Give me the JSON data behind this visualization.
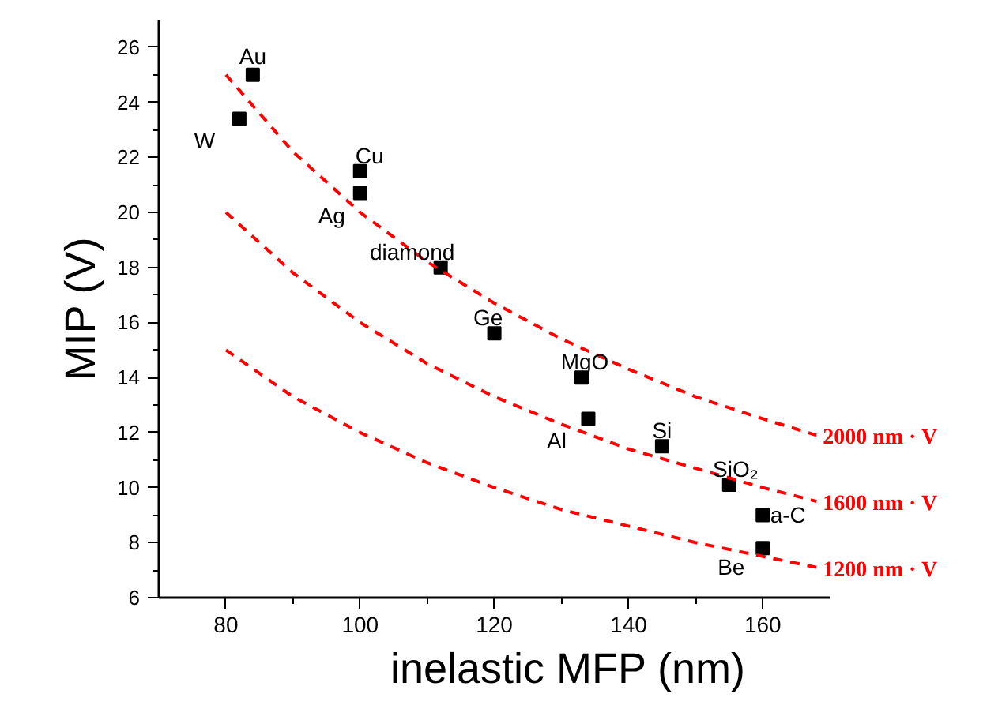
{
  "chart_data": {
    "type": "scatter",
    "xlabel": "inelastic MFP (nm)",
    "ylabel": "MIP (V)",
    "xlim": [
      70,
      170
    ],
    "xticks": [
      80,
      100,
      120,
      140,
      160
    ],
    "ylim": [
      6,
      27
    ],
    "yticks": [
      6,
      8,
      10,
      12,
      14,
      16,
      18,
      20,
      22,
      24,
      26
    ],
    "grid": false,
    "series": [
      {
        "color": "#000000",
        "marker": "square",
        "x": [
          82,
          84,
          100,
          100,
          112,
          120,
          133,
          134,
          145,
          155,
          160,
          160
        ],
        "values": [
          23.4,
          25.0,
          21.5,
          20.7,
          18.0,
          15.6,
          14.0,
          12.5,
          11.5,
          10.1,
          9.0,
          7.8
        ]
      },
      {
        "type": "line",
        "color": "#ff0000",
        "line_style": "dashed",
        "marker": "none",
        "x": [
          80,
          90,
          100,
          110,
          120,
          130,
          140,
          150,
          160,
          168
        ],
        "values": [
          25.0,
          22.2,
          20.0,
          18.2,
          16.7,
          15.4,
          14.3,
          13.3,
          12.5,
          11.9
        ]
      },
      {
        "type": "line",
        "color": "#ff0000",
        "line_style": "dashed",
        "marker": "none",
        "x": [
          80,
          90,
          100,
          110,
          120,
          130,
          140,
          150,
          160,
          168
        ],
        "values": [
          20.0,
          17.8,
          16.0,
          14.5,
          13.3,
          12.3,
          11.4,
          10.7,
          10.0,
          9.5
        ]
      },
      {
        "type": "line",
        "color": "#ff0000",
        "line_style": "dashed",
        "marker": "none",
        "x": [
          80,
          90,
          100,
          110,
          120,
          130,
          140,
          150,
          160,
          168
        ],
        "values": [
          15.0,
          13.3,
          12.0,
          10.9,
          10.0,
          9.2,
          8.6,
          8.0,
          7.5,
          7.1
        ]
      }
    ],
    "annotations": [
      {
        "text": "W",
        "x": 82,
        "y": 23.4
      },
      {
        "text": "Au",
        "x": 84,
        "y": 25.0
      },
      {
        "text": "Cu",
        "x": 100,
        "y": 21.5
      },
      {
        "text": "Ag",
        "x": 100,
        "y": 20.7
      },
      {
        "text": "diamond",
        "x": 112,
        "y": 18.0
      },
      {
        "text": "Ge",
        "x": 120,
        "y": 15.6
      },
      {
        "text": "MgO",
        "x": 133,
        "y": 14.0
      },
      {
        "text": "Al",
        "x": 134,
        "y": 12.5
      },
      {
        "text": "Si",
        "x": 145,
        "y": 11.5
      },
      {
        "text": "SiO₂",
        "x": 155,
        "y": 10.1
      },
      {
        "text": "a-C",
        "x": 160,
        "y": 9.0
      },
      {
        "text": "Be",
        "x": 160,
        "y": 7.8
      },
      {
        "text": "2000 nm · V",
        "x": 168,
        "y": 11.9
      },
      {
        "text": "1600 nm · V",
        "x": 168,
        "y": 9.5
      },
      {
        "text": "1200 nm · V",
        "x": 168,
        "y": 7.1
      }
    ]
  }
}
